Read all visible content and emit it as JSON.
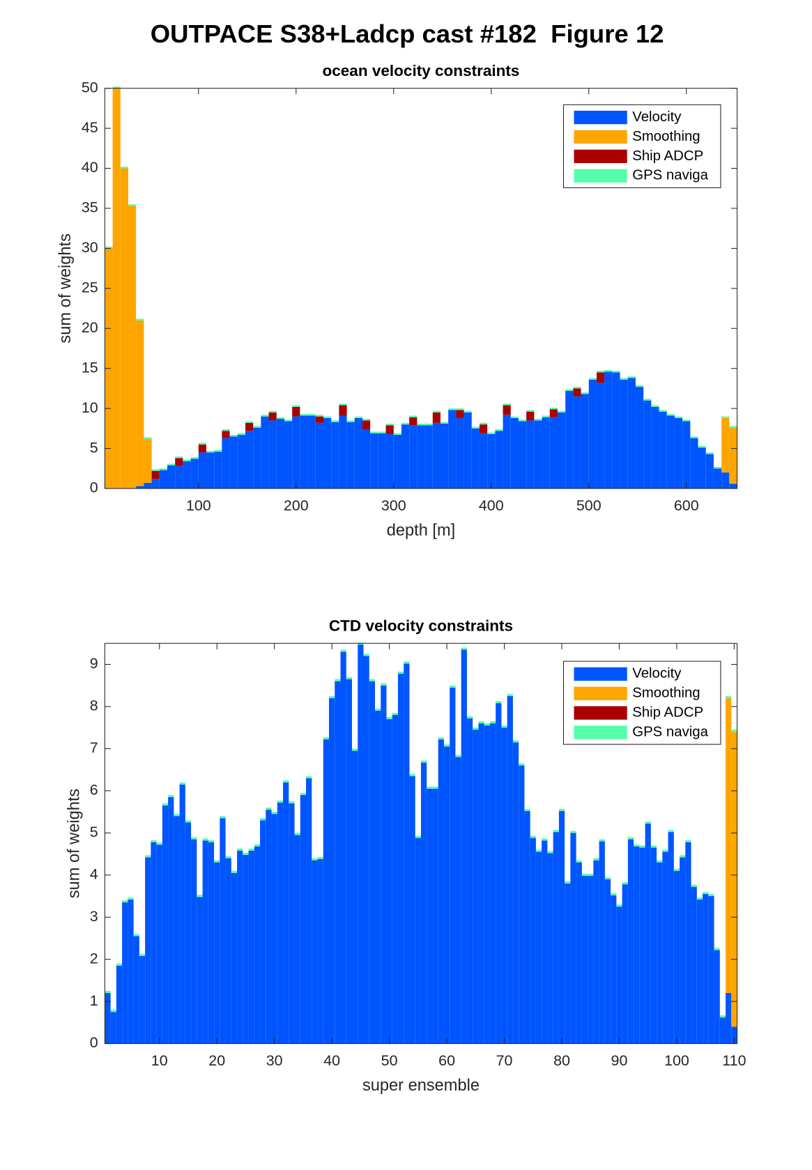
{
  "title": "OUTPACE S38+Ladcp cast #182  Figure 12",
  "chart_data": [
    {
      "type": "bar",
      "stacked": true,
      "title": "ocean velocity constraints",
      "xlabel": "depth [m]",
      "ylabel": "sum of weights",
      "legend": "upper right",
      "x": [
        8,
        16,
        24,
        32,
        40,
        48,
        56,
        64,
        72,
        80,
        88,
        96,
        104,
        112,
        120,
        128,
        136,
        144,
        152,
        160,
        168,
        176,
        184,
        192,
        200,
        208,
        216,
        224,
        232,
        240,
        248,
        256,
        264,
        272,
        280,
        288,
        296,
        304,
        312,
        320,
        328,
        336,
        344,
        352,
        360,
        368,
        376,
        384,
        392,
        400,
        408,
        416,
        424,
        432,
        440,
        448,
        456,
        464,
        472,
        480,
        488,
        496,
        504,
        512,
        520,
        528,
        536,
        544,
        552,
        560,
        568,
        576,
        584,
        592,
        600,
        608,
        616,
        624,
        632,
        640,
        648
      ],
      "xlim": [
        4,
        652
      ],
      "ylim": [
        0,
        50
      ],
      "xticks": [
        100,
        200,
        300,
        400,
        500,
        600
      ],
      "yticks": [
        0,
        5,
        10,
        15,
        20,
        25,
        30,
        35,
        40,
        45,
        50
      ],
      "series": [
        {
          "name": "Velocity",
          "color": "#0055ff",
          "values": [
            0,
            0,
            0,
            0,
            0.3,
            0.7,
            1.2,
            2.3,
            2.9,
            2.8,
            3.4,
            3.7,
            4.5,
            4.5,
            4.6,
            6.3,
            6.5,
            6.7,
            7.2,
            7.6,
            9.0,
            8.5,
            8.7,
            8.4,
            9.0,
            9.1,
            9.1,
            8.2,
            8.8,
            8.3,
            9.1,
            8.3,
            8.8,
            7.4,
            6.9,
            6.9,
            6.8,
            6.7,
            8.0,
            7.9,
            7.9,
            7.9,
            8.2,
            8.1,
            9.8,
            8.8,
            9.5,
            7.5,
            6.9,
            6.8,
            7.2,
            9.2,
            8.8,
            8.4,
            8.5,
            8.5,
            8.9,
            8.9,
            9.5,
            12.2,
            11.5,
            11.8,
            13.6,
            13.2,
            14.6,
            14.5,
            13.6,
            13.8,
            12.7,
            11.0,
            10.2,
            9.6,
            9.1,
            8.8,
            8.4,
            6.3,
            5.1,
            4.3,
            2.5,
            2.0,
            0.6
          ]
        },
        {
          "name": "Smoothing",
          "color": "#ffa500",
          "values": [
            30,
            50,
            40,
            35.3,
            20.7,
            5.5,
            0,
            0,
            0,
            0,
            0,
            0,
            0,
            0,
            0,
            0,
            0,
            0,
            0,
            0,
            0,
            0,
            0,
            0,
            0,
            0,
            0,
            0,
            0,
            0,
            0,
            0,
            0,
            0,
            0,
            0,
            0,
            0,
            0,
            0,
            0,
            0,
            0,
            0,
            0,
            0,
            0,
            0,
            0,
            0,
            0,
            0,
            0,
            0,
            0,
            0,
            0,
            0,
            0,
            0,
            0,
            0,
            0,
            0,
            0,
            0,
            0,
            0,
            0,
            0,
            0,
            0,
            0,
            0,
            0,
            0,
            0,
            0,
            0,
            6.8,
            7.0
          ]
        },
        {
          "name": "Ship ADCP",
          "color": "#aa0000",
          "values": [
            0,
            0,
            0,
            0,
            0,
            0,
            1.0,
            0,
            0,
            1.0,
            0,
            0,
            1.0,
            0,
            0,
            0.9,
            0,
            0,
            1.0,
            0,
            0,
            1.0,
            0,
            0,
            1.2,
            0,
            0,
            0.8,
            0,
            0,
            1.3,
            0,
            0,
            1.1,
            0,
            0,
            1.1,
            0,
            0,
            1.0,
            0,
            0,
            1.3,
            0,
            0,
            1.0,
            0,
            0,
            1.1,
            0,
            0,
            1.2,
            0,
            0,
            1.1,
            0,
            0,
            1.0,
            0,
            0,
            1.0,
            0,
            0,
            1.3,
            0,
            0,
            0,
            0,
            0,
            0,
            0,
            0,
            0,
            0,
            0,
            0,
            0,
            0,
            0,
            0,
            0
          ]
        },
        {
          "name": "GPS naviga",
          "color": "#55ffaa",
          "values": [
            0.2,
            0.2,
            0.2,
            0.2,
            0.2,
            0.2,
            0.2,
            0.2,
            0.2,
            0.2,
            0.2,
            0.2,
            0.2,
            0.2,
            0.2,
            0.2,
            0.2,
            0.2,
            0.2,
            0.2,
            0.2,
            0.2,
            0.2,
            0.2,
            0.2,
            0.2,
            0.2,
            0.2,
            0.2,
            0.2,
            0.2,
            0.2,
            0.2,
            0.2,
            0.2,
            0.2,
            0.2,
            0.2,
            0.2,
            0.2,
            0.2,
            0.2,
            0.2,
            0.2,
            0.2,
            0.2,
            0.2,
            0.2,
            0.2,
            0.2,
            0.2,
            0.2,
            0.2,
            0.2,
            0.2,
            0.2,
            0.2,
            0.2,
            0.2,
            0.2,
            0.2,
            0.2,
            0.2,
            0.2,
            0.2,
            0.2,
            0.2,
            0.2,
            0.2,
            0.2,
            0.2,
            0.2,
            0.2,
            0.2,
            0.2,
            0.2,
            0.2,
            0.2,
            0.2,
            0.2,
            0.2
          ]
        }
      ]
    },
    {
      "type": "bar",
      "stacked": true,
      "title": "CTD velocity constraints",
      "xlabel": "super ensemble",
      "ylabel": "sum of weights",
      "legend": "upper right",
      "x": [
        1,
        2,
        3,
        4,
        5,
        6,
        7,
        8,
        9,
        10,
        11,
        12,
        13,
        14,
        15,
        16,
        17,
        18,
        19,
        20,
        21,
        22,
        23,
        24,
        25,
        26,
        27,
        28,
        29,
        30,
        31,
        32,
        33,
        34,
        35,
        36,
        37,
        38,
        39,
        40,
        41,
        42,
        43,
        44,
        45,
        46,
        47,
        48,
        49,
        50,
        51,
        52,
        53,
        54,
        55,
        56,
        57,
        58,
        59,
        60,
        61,
        62,
        63,
        64,
        65,
        66,
        67,
        68,
        69,
        70,
        71,
        72,
        73,
        74,
        75,
        76,
        77,
        78,
        79,
        80,
        81,
        82,
        83,
        84,
        85,
        86,
        87,
        88,
        89,
        90,
        91,
        92,
        93,
        94,
        95,
        96,
        97,
        98,
        99,
        100,
        101,
        102,
        103,
        104,
        105,
        106,
        107,
        108,
        109,
        110
      ],
      "xlim": [
        0.5,
        110.5
      ],
      "ylim": [
        0,
        9.5
      ],
      "xticks": [
        10,
        20,
        30,
        40,
        50,
        60,
        70,
        80,
        90,
        100,
        110
      ],
      "yticks": [
        0,
        1,
        2,
        3,
        4,
        5,
        6,
        7,
        8,
        9
      ],
      "series": [
        {
          "name": "Velocity",
          "color": "#0055ff",
          "values": [
            1.2,
            0.75,
            1.85,
            3.35,
            3.42,
            2.55,
            2.08,
            4.42,
            4.78,
            4.72,
            5.65,
            5.85,
            5.4,
            6.15,
            5.25,
            4.85,
            3.48,
            4.82,
            4.78,
            4.3,
            5.35,
            4.4,
            4.05,
            4.58,
            4.48,
            4.58,
            4.68,
            5.3,
            5.55,
            5.45,
            5.72,
            6.2,
            5.7,
            4.95,
            5.9,
            6.3,
            4.35,
            4.38,
            7.22,
            8.2,
            8.6,
            9.3,
            8.65,
            6.95,
            9.47,
            9.2,
            8.6,
            7.9,
            8.5,
            7.7,
            7.8,
            8.78,
            9.02,
            6.35,
            4.88,
            6.67,
            6.05,
            6.05,
            7.22,
            7.05,
            8.45,
            6.8,
            9.35,
            7.72,
            7.45,
            7.6,
            7.55,
            7.6,
            8.08,
            7.5,
            8.25,
            7.15,
            6.6,
            5.52,
            4.88,
            4.55,
            4.82,
            4.52,
            5.02,
            5.52,
            3.8,
            5.0,
            4.3,
            3.98,
            3.98,
            4.35,
            4.8,
            3.9,
            3.52,
            3.25,
            3.78,
            4.85,
            4.68,
            4.65,
            5.22,
            4.65,
            4.3,
            4.55,
            5.02,
            4.1,
            4.42,
            4.78,
            3.72,
            3.42,
            3.55,
            3.5,
            2.22,
            0.62,
            1.2,
            0.4
          ]
        },
        {
          "name": "Smoothing",
          "color": "#ffa500",
          "values": [
            0,
            0,
            0,
            0,
            0,
            0,
            0,
            0,
            0,
            0,
            0,
            0,
            0,
            0,
            0,
            0,
            0,
            0,
            0,
            0,
            0,
            0,
            0,
            0,
            0,
            0,
            0,
            0,
            0,
            0,
            0,
            0,
            0,
            0,
            0,
            0,
            0,
            0,
            0,
            0,
            0,
            0,
            0,
            0,
            0,
            0,
            0,
            0,
            0,
            0,
            0,
            0,
            0,
            0,
            0,
            0,
            0,
            0,
            0,
            0,
            0,
            0,
            0,
            0,
            0,
            0,
            0,
            0,
            0,
            0,
            0,
            0,
            0,
            0,
            0,
            0,
            0,
            0,
            0,
            0,
            0,
            0,
            0,
            0,
            0,
            0,
            0,
            0,
            0,
            0,
            0,
            0,
            0,
            0,
            0,
            0,
            0,
            0,
            0,
            0,
            0,
            0,
            0,
            0,
            0,
            0,
            0,
            0,
            7.0,
            7.0
          ]
        },
        {
          "name": "Ship ADCP",
          "color": "#aa0000",
          "values": [
            0,
            0,
            0,
            0,
            0,
            0,
            0,
            0,
            0,
            0,
            0,
            0,
            0,
            0,
            0,
            0,
            0,
            0,
            0,
            0,
            0,
            0,
            0,
            0,
            0,
            0,
            0,
            0,
            0,
            0,
            0,
            0,
            0,
            0,
            0,
            0,
            0,
            0,
            0,
            0,
            0,
            0,
            0,
            0,
            0,
            0,
            0,
            0,
            0,
            0,
            0,
            0,
            0,
            0,
            0,
            0,
            0,
            0,
            0,
            0,
            0,
            0,
            0,
            0,
            0,
            0,
            0,
            0,
            0,
            0,
            0,
            0,
            0,
            0,
            0,
            0,
            0,
            0,
            0,
            0,
            0,
            0,
            0,
            0,
            0,
            0,
            0,
            0,
            0,
            0,
            0,
            0,
            0,
            0,
            0,
            0,
            0,
            0,
            0,
            0,
            0,
            0,
            0,
            0,
            0,
            0,
            0,
            0,
            0,
            0
          ]
        },
        {
          "name": "GPS naviga",
          "color": "#55ffaa",
          "values": [
            0.05,
            0.05,
            0.05,
            0.05,
            0.05,
            0.05,
            0.05,
            0.05,
            0.05,
            0.05,
            0.05,
            0.05,
            0.05,
            0.05,
            0.05,
            0.05,
            0.05,
            0.05,
            0.05,
            0.05,
            0.05,
            0.05,
            0.05,
            0.05,
            0.05,
            0.05,
            0.05,
            0.05,
            0.05,
            0.05,
            0.05,
            0.05,
            0.05,
            0.05,
            0.05,
            0.05,
            0.05,
            0.05,
            0.05,
            0.05,
            0.05,
            0.05,
            0.05,
            0.05,
            0.05,
            0.05,
            0.05,
            0.05,
            0.05,
            0.05,
            0.05,
            0.05,
            0.05,
            0.05,
            0.05,
            0.05,
            0.05,
            0.05,
            0.05,
            0.05,
            0.05,
            0.05,
            0.05,
            0.05,
            0.05,
            0.05,
            0.05,
            0.05,
            0.05,
            0.05,
            0.05,
            0.05,
            0.05,
            0.05,
            0.05,
            0.05,
            0.05,
            0.05,
            0.05,
            0.05,
            0.05,
            0.05,
            0.05,
            0.05,
            0.05,
            0.05,
            0.05,
            0.05,
            0.05,
            0.05,
            0.05,
            0.05,
            0.05,
            0.05,
            0.05,
            0.05,
            0.05,
            0.05,
            0.05,
            0.05,
            0.05,
            0.05,
            0.05,
            0.05,
            0.05,
            0.05,
            0.05,
            0.05,
            0.05,
            0.05
          ]
        }
      ]
    }
  ]
}
